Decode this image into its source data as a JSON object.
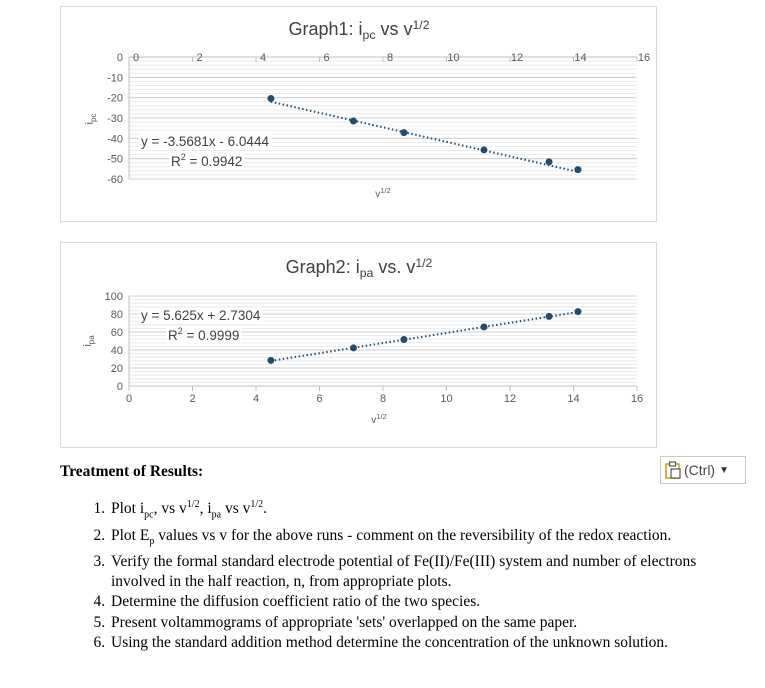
{
  "chart_data": [
    {
      "type": "scatter",
      "title": "Graph1: i",
      "title_sub": "pc",
      "title_mid": " vs ",
      "title_var": "v",
      "title_sup": "1/2",
      "xlabel": "v",
      "xlabel_sup": "1/2",
      "ylabel": "i",
      "ylabel_sub": "pc",
      "xlim": [
        0,
        16
      ],
      "ylim": [
        -60,
        0
      ],
      "xticks": [
        "0",
        "2",
        "4",
        "6",
        "8",
        "10",
        "12",
        "14",
        "16"
      ],
      "yticks": [
        "0",
        "-10",
        "-20",
        "-30",
        "-40",
        "-50",
        "-60"
      ],
      "x_axis_position": "top",
      "grid": true,
      "marker_color": "#1f4e6e",
      "x": [
        4.47,
        7.07,
        8.66,
        11.18,
        13.23,
        14.14
      ],
      "y": [
        -20.4,
        -31.5,
        -37.2,
        -45.7,
        -51.6,
        -55.4
      ],
      "trendline": {
        "type": "linear",
        "slope": -3.5681,
        "intercept": -6.0444
      },
      "equation": "y = -3.5681x - 6.0444",
      "r2_label": "R",
      "r2_sup": "2",
      "r2_value": " = 0.9942"
    },
    {
      "type": "scatter",
      "title": "Graph2: i",
      "title_sub": "pa",
      "title_mid": " vs. ",
      "title_var": "v",
      "title_sup": "1/2",
      "xlabel": "v",
      "xlabel_sup": "1/2",
      "ylabel": "i",
      "ylabel_sub": "pa",
      "xlim": [
        0,
        16
      ],
      "ylim": [
        0,
        100
      ],
      "xticks": [
        "0",
        "2",
        "4",
        "6",
        "8",
        "10",
        "12",
        "14",
        "16"
      ],
      "yticks": [
        "0",
        "20",
        "40",
        "60",
        "80",
        "100"
      ],
      "x_axis_position": "bottom",
      "grid": true,
      "marker_color": "#1f4e6e",
      "x": [
        4.47,
        7.07,
        8.66,
        11.18,
        13.23,
        14.14
      ],
      "y": [
        28.5,
        42.3,
        51.6,
        65.6,
        77.3,
        82.7
      ],
      "trendline": {
        "type": "linear",
        "slope": 5.625,
        "intercept": 2.7304
      },
      "equation": "y = 5.625x + 2.7304",
      "r2_label": "R",
      "r2_sup": "2",
      "r2_value": " = 0.9999"
    }
  ],
  "paste_options": {
    "label": "(Ctrl)",
    "icon": "clipboard-icon"
  },
  "treatment": {
    "heading": "Treatment of Results:",
    "items": [
      {
        "a": "Plot i",
        "a_sub": "pc",
        "b": ", vs v",
        "b_sup": "1/2",
        "c": ", i",
        "c_sub": "pa",
        "d": " vs v",
        "d_sup": "1/2",
        "e": "."
      },
      {
        "a": "Plot E",
        "a_sub": "p",
        "b": " values vs v for the above runs - comment on the reversibility of the redox reaction."
      },
      {
        "text": "Verify the formal standard electrode potential of Fe(II)/Fe(III) system and number of electrons involved in the half reaction, n, from appropriate plots."
      },
      {
        "text": "Determine the diffusion coefficient ratio of the two species."
      },
      {
        "text": "Present voltammograms of appropriate 'sets' overlapped on the same paper."
      },
      {
        "text": "Using the standard addition method determine the concentration of the unknown solution."
      }
    ]
  }
}
